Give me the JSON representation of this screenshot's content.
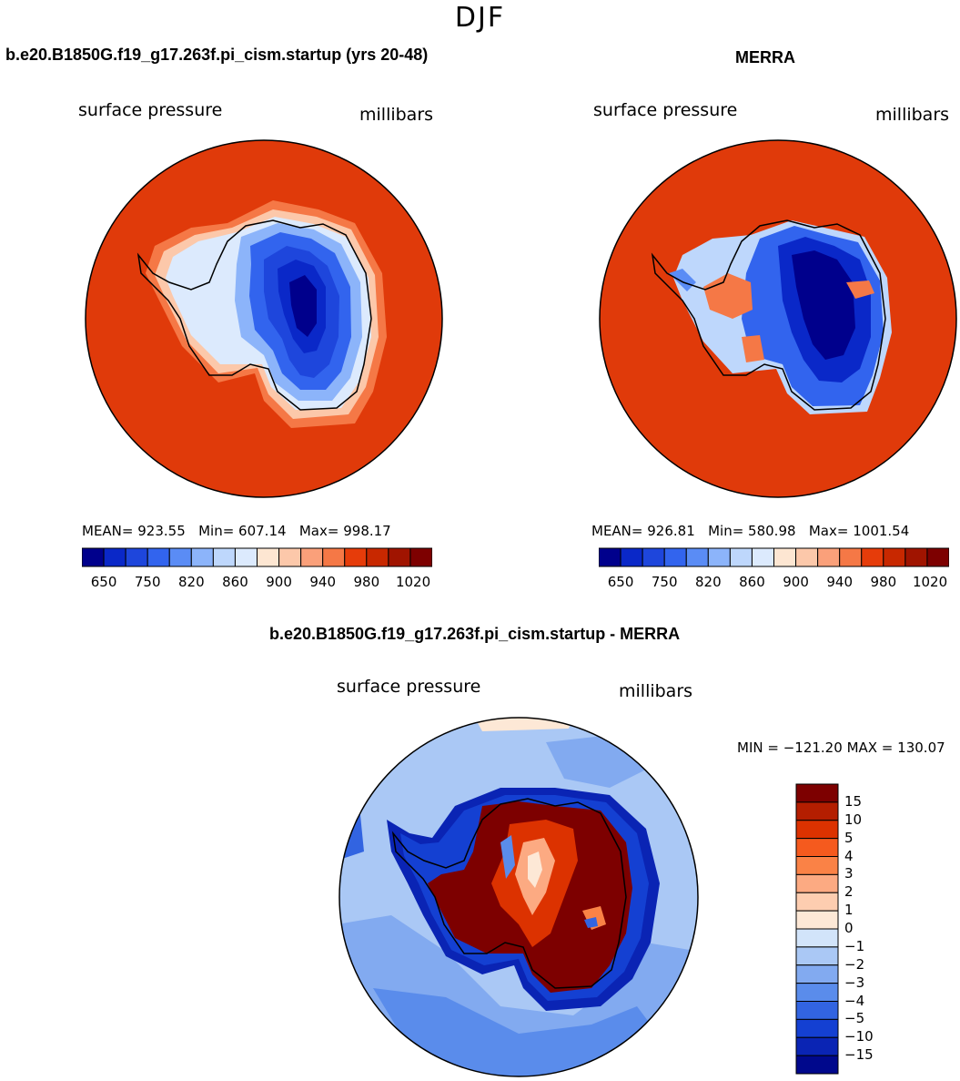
{
  "figure_title": "DJF",
  "panels": [
    {
      "title": "b.e20.B1850G.f19_g17.263f.pi_cism.startup (yrs 20-48)",
      "variable": "surface pressure",
      "units": "millibars",
      "stats": {
        "mean": "923.55",
        "min": "607.14",
        "max": "998.17"
      },
      "colorbar_ticks": [
        "650",
        "750",
        "820",
        "860",
        "900",
        "940",
        "980",
        "1020"
      ]
    },
    {
      "title": "MERRA",
      "variable": "surface pressure",
      "units": "millibars",
      "stats": {
        "mean": "926.81",
        "min": "580.98",
        "max": "1001.54"
      },
      "colorbar_ticks": [
        "650",
        "750",
        "820",
        "860",
        "900",
        "940",
        "980",
        "1020"
      ]
    },
    {
      "title": "b.e20.B1850G.f19_g17.263f.pi_cism.startup - MERRA",
      "variable": "surface pressure",
      "units": "millibars",
      "stats": {
        "min": "−121.20",
        "max": "130.07"
      },
      "colorbar_ticks": [
        "15",
        "10",
        "5",
        "4",
        "3",
        "2",
        "1",
        "0",
        "−1",
        "−2",
        "−3",
        "−4",
        "−5",
        "−10",
        "−15"
      ]
    }
  ],
  "labels": {
    "mean": "MEAN=",
    "min": "Min=",
    "max": "Max=",
    "diff_min": "MIN =",
    "diff_max": "MAX ="
  },
  "colors": {
    "abs_scale": [
      "#00008c",
      "#0a28c8",
      "#1e46dc",
      "#3264ee",
      "#5a8cf5",
      "#8cb4fa",
      "#bed7fc",
      "#dceafd",
      "#fde6d2",
      "#fcc8aa",
      "#faa07a",
      "#f57846",
      "#e63c0a",
      "#c82800",
      "#a01400",
      "#7d0000"
    ],
    "diff_scale": [
      "#7d0000",
      "#b41e00",
      "#dc3200",
      "#f55a1e",
      "#fa8246",
      "#fcaa82",
      "#fdcdb0",
      "#fde8d6",
      "#d2e4fa",
      "#aac8f5",
      "#82aaf0",
      "#5a8ceb",
      "#3264e1",
      "#1440d2",
      "#0a24b4",
      "#00088c"
    ],
    "ocean_high": "#e03a0a",
    "land_low": "#00008c"
  }
}
